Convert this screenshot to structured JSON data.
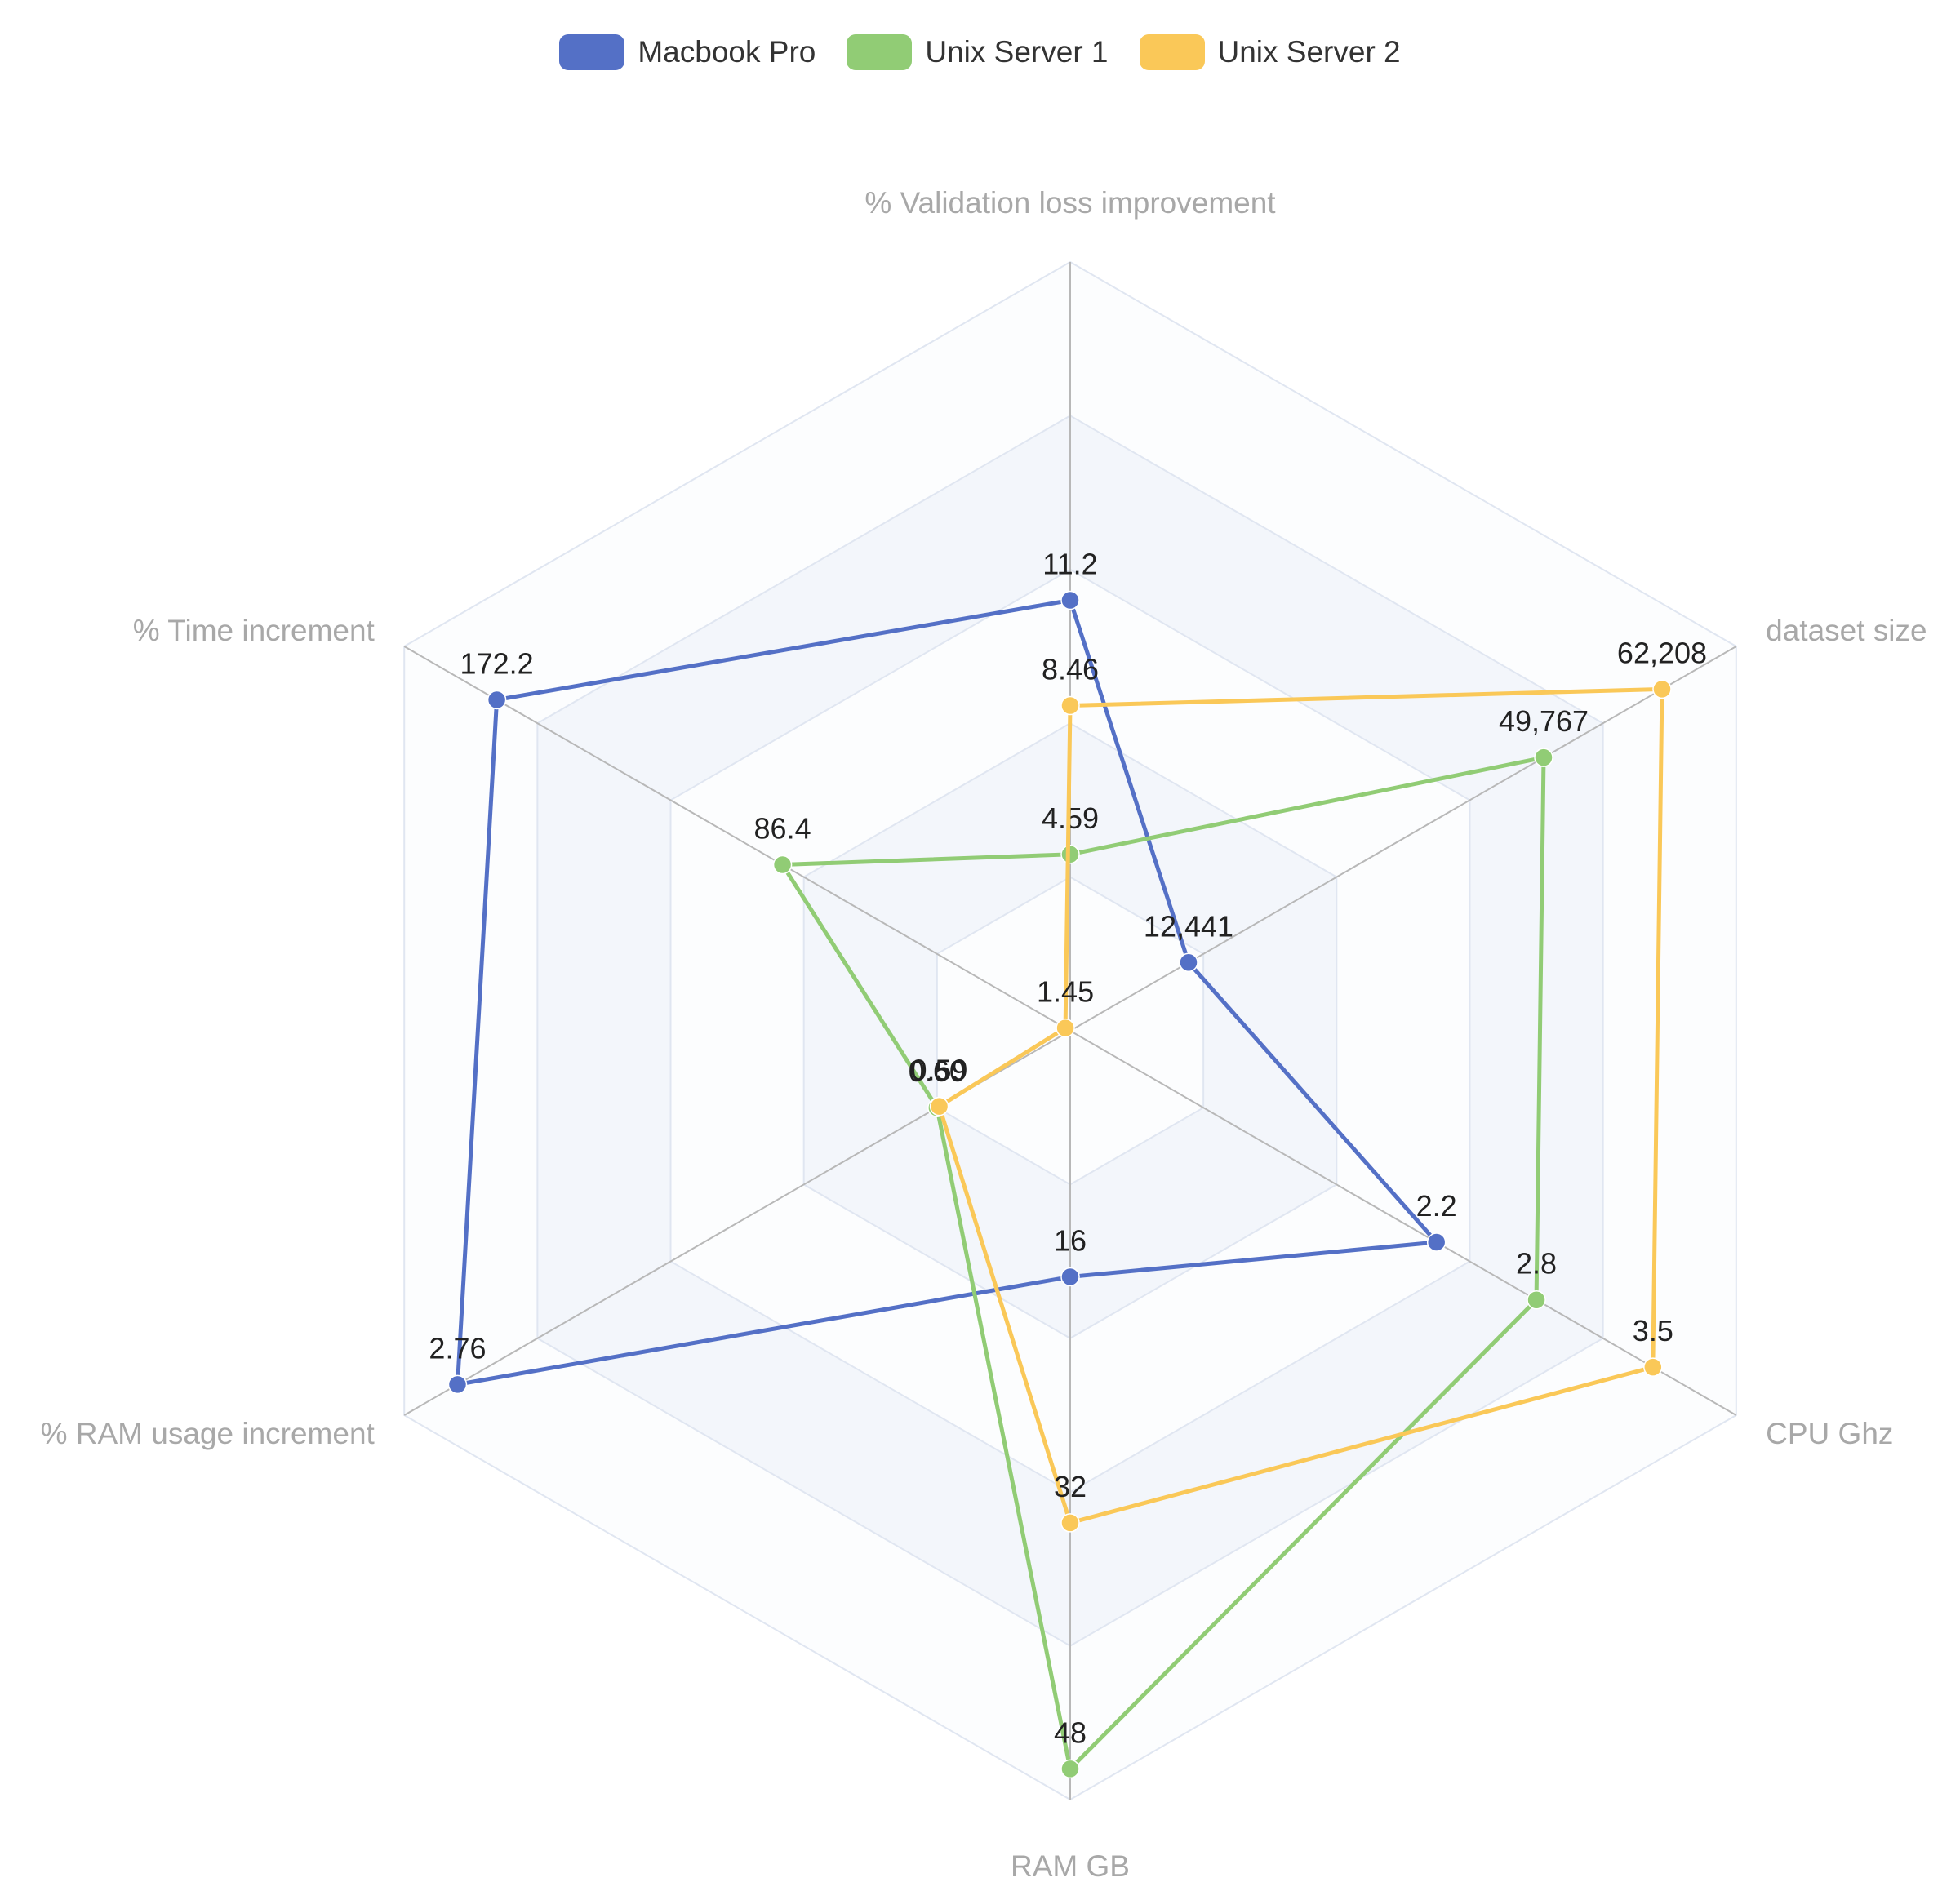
{
  "chart_data": {
    "type": "radar",
    "indicators": [
      {
        "name": "% Validation loss improvement",
        "min": 0,
        "max": 20
      },
      {
        "name": "dataset size",
        "min": 0,
        "max": 70000
      },
      {
        "name": "CPU Ghz",
        "min": 0,
        "max": 4
      },
      {
        "name": "RAM GB",
        "min": 0,
        "max": 50
      },
      {
        "name": "% RAM usage increment",
        "min": 0,
        "max": 3
      },
      {
        "name": "% Time increment",
        "min": 0,
        "max": 200
      }
    ],
    "series": [
      {
        "name": "Macbook Pro",
        "color": "#5470c6",
        "values": [
          11.2,
          12441,
          2.2,
          16,
          2.76,
          172.2
        ],
        "labels": [
          "11.2",
          "12,441",
          "2.2",
          "16",
          "2.76",
          "172.2"
        ]
      },
      {
        "name": "Unix Server 1",
        "color": "#91cc75",
        "values": [
          4.59,
          49767,
          2.8,
          48,
          0.6,
          86.4
        ],
        "labels": [
          "4.59",
          "49,767",
          "2.8",
          "48",
          "0.60",
          "86.4"
        ]
      },
      {
        "name": "Unix Server 2",
        "color": "#fac858",
        "values": [
          8.46,
          62208,
          3.5,
          32,
          0.59,
          1.45
        ],
        "labels": [
          "8.46",
          "62,208",
          "3.5",
          "32",
          "0.59",
          "1.45"
        ]
      }
    ],
    "split_number": 5,
    "legend_position": "top-center"
  }
}
